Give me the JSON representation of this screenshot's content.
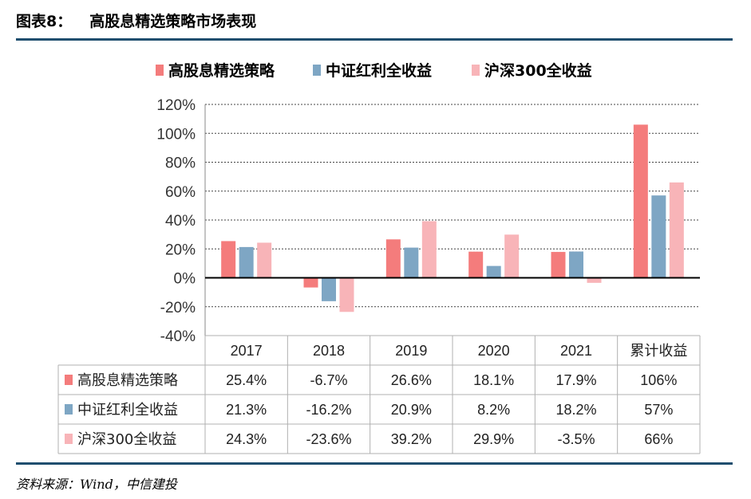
{
  "header": {
    "figure_number": "图表8：",
    "title": "高股息精选策略市场表现"
  },
  "source": "资料来源：Wind，中信建投",
  "chart_data": {
    "type": "bar",
    "categories": [
      "2017",
      "2018",
      "2019",
      "2020",
      "2021",
      "累计收益"
    ],
    "series": [
      {
        "name": "高股息精选策略",
        "color": "#f47c7c",
        "values": [
          25.4,
          -6.7,
          26.6,
          18.1,
          17.9,
          106
        ],
        "labels": [
          "25.4%",
          "-6.7%",
          "26.6%",
          "18.1%",
          "17.9%",
          "106%"
        ]
      },
      {
        "name": "中证红利全收益",
        "color": "#7ea6c4",
        "values": [
          21.3,
          -16.2,
          20.9,
          8.2,
          18.2,
          57
        ],
        "labels": [
          "21.3%",
          "-16.2%",
          "20.9%",
          "8.2%",
          "18.2%",
          "57%"
        ]
      },
      {
        "name": "沪深300全收益",
        "color": "#f8b4b8",
        "values": [
          24.3,
          -23.6,
          39.2,
          29.9,
          -3.5,
          66
        ],
        "labels": [
          "24.3%",
          "-23.6%",
          "39.2%",
          "29.9%",
          "-3.5%",
          "66%"
        ]
      }
    ],
    "ylim": [
      -40,
      120
    ],
    "yticks": [
      -40,
      -20,
      0,
      20,
      40,
      60,
      80,
      100,
      120
    ],
    "ytick_labels": [
      "-40%",
      "-20%",
      "0%",
      "20%",
      "40%",
      "60%",
      "80%",
      "100%",
      "120%"
    ],
    "grid": true,
    "legend_position": "top",
    "data_table": true
  }
}
